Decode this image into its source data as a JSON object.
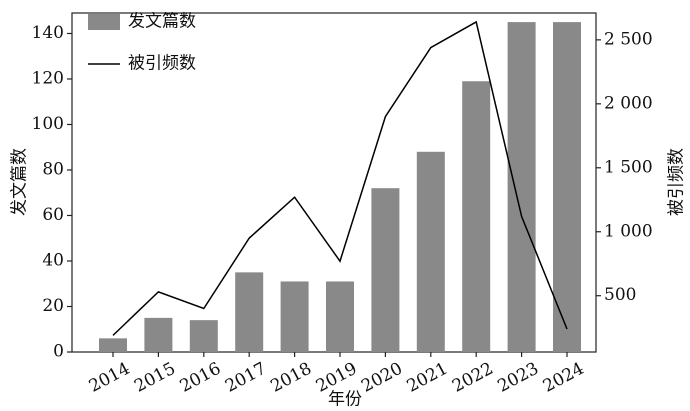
{
  "chart_data": {
    "type": "bar",
    "categories": [
      "2014",
      "2015",
      "2016",
      "2017",
      "2018",
      "2019",
      "2020",
      "2021",
      "2022",
      "2023",
      "2024"
    ],
    "series": [
      {
        "name": "发文篇数",
        "color": "#898989",
        "values": [
          6,
          15,
          14,
          35,
          31,
          31,
          72,
          88,
          119,
          145,
          145
        ]
      },
      {
        "name": "被引频数",
        "color": "#000000",
        "type": "line",
        "axis": "y2",
        "values": [
          190,
          530,
          400,
          950,
          1270,
          770,
          1900,
          2440,
          2640,
          1120,
          240
        ]
      }
    ],
    "x_label": "年份",
    "y_label": "发文篇数",
    "y2_label": "被引频数",
    "ylim": [
      0,
      149
    ],
    "yticks": [
      0,
      20,
      40,
      60,
      80,
      100,
      120,
      140
    ],
    "y2lim": [
      60,
      2710
    ],
    "y2ticks": [
      500,
      {
        "value": 1000,
        "label": "1 000"
      },
      {
        "value": 1500,
        "label": "1 500"
      },
      {
        "value": 2000,
        "label": "2 000"
      },
      {
        "value": 2500,
        "label": "2 500"
      }
    ],
    "legend": "upper left"
  }
}
